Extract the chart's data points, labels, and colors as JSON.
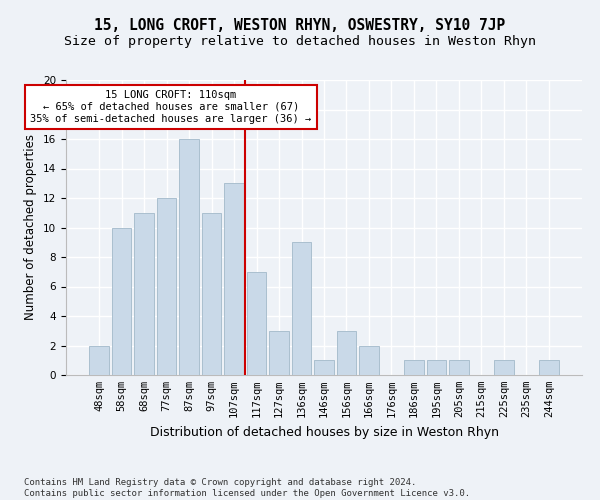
{
  "title1": "15, LONG CROFT, WESTON RHYN, OSWESTRY, SY10 7JP",
  "title2": "Size of property relative to detached houses in Weston Rhyn",
  "xlabel": "Distribution of detached houses by size in Weston Rhyn",
  "ylabel": "Number of detached properties",
  "categories": [
    "48sqm",
    "58sqm",
    "68sqm",
    "77sqm",
    "87sqm",
    "97sqm",
    "107sqm",
    "117sqm",
    "127sqm",
    "136sqm",
    "146sqm",
    "156sqm",
    "166sqm",
    "176sqm",
    "186sqm",
    "195sqm",
    "205sqm",
    "215sqm",
    "225sqm",
    "235sqm",
    "244sqm"
  ],
  "values": [
    2,
    10,
    11,
    12,
    16,
    11,
    13,
    7,
    3,
    9,
    1,
    3,
    2,
    0,
    1,
    1,
    1,
    0,
    1,
    0,
    1
  ],
  "bar_color": "#c9d9e8",
  "bar_edge_color": "#aabfcf",
  "vline_x": 6.5,
  "vline_color": "#cc0000",
  "annotation_text": "15 LONG CROFT: 110sqm\n← 65% of detached houses are smaller (67)\n35% of semi-detached houses are larger (36) →",
  "annotation_box_color": "#ffffff",
  "annotation_box_edge_color": "#cc0000",
  "ylim": [
    0,
    20
  ],
  "yticks": [
    0,
    2,
    4,
    6,
    8,
    10,
    12,
    14,
    16,
    18,
    20
  ],
  "footer": "Contains HM Land Registry data © Crown copyright and database right 2024.\nContains public sector information licensed under the Open Government Licence v3.0.",
  "background_color": "#eef2f7",
  "grid_color": "#ffffff",
  "title1_fontsize": 10.5,
  "title2_fontsize": 9.5,
  "xlabel_fontsize": 9,
  "ylabel_fontsize": 8.5,
  "tick_fontsize": 7.5,
  "footer_fontsize": 6.5
}
